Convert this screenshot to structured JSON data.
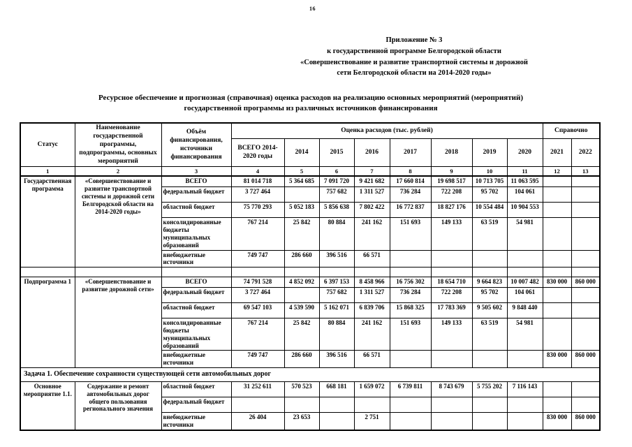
{
  "page": {
    "number": "16"
  },
  "appendix": {
    "lines": [
      "Приложение № 3",
      "к государственной программе Белгородской области",
      "«Совершенствование и развитие транспортной системы и дорожной",
      "сети  Белгородской области на  2014-2020 годы»"
    ]
  },
  "title": {
    "line1": "Ресурсное обеспечение и прогнозная (справочная) оценка расходов на реализацию основных мероприятий (мероприятий)",
    "line2": "государственной программы из различных источников финансирования"
  },
  "table": {
    "headers": {
      "status": "Статус",
      "name": "Наименование государственной программы, подпрограммы, основных мероприятий",
      "volume": "Объём финансирования, источники финансирования",
      "expenses_group": "Оценка расходов (тыс. рублей)",
      "reference_group": "Справочно",
      "year_columns": [
        "ВСЕГО 2014-2020 годы",
        "2014",
        "2015",
        "2016",
        "2017",
        "2018",
        "2019",
        "2020",
        "2021",
        "2022"
      ],
      "column_numbers": [
        "1",
        "2",
        "3",
        "4",
        "5",
        "6",
        "7",
        "8",
        "9",
        "10",
        "11",
        "12",
        "13"
      ]
    },
    "blocks": [
      {
        "status": "Государственная программа",
        "name": "«Совершенствование и развитие транспортной системы и дорожной сети Белгородской области на 2014-2020 годы»",
        "rows": [
          {
            "source": "ВСЕГО",
            "total": true,
            "values": [
              "81 014 718",
              "5 364 685",
              "7 091 720",
              "9 421 682",
              "17 660 814",
              "19 698 517",
              "10 713 705",
              "11 063 595",
              "",
              ""
            ]
          },
          {
            "source": "федеральный бюджет",
            "values": [
              "3 727 464",
              "",
              "757 682",
              "1 311 527",
              "736 284",
              "722 208",
              "95 702",
              "104 061",
              "",
              ""
            ]
          },
          {
            "source": "областной бюджет",
            "values": [
              "75 770 293",
              "5 052 183",
              "5 856 638",
              "7 802 422",
              "16 772 837",
              "18 827 176",
              "10 554 484",
              "10 904 553",
              "",
              ""
            ]
          },
          {
            "source": "консолидированные бюджеты муниципальных образований",
            "values": [
              "767 214",
              "25 842",
              "80 884",
              "241 162",
              "151 693",
              "149 133",
              "63 519",
              "54 981",
              "",
              ""
            ]
          },
          {
            "source": "внебюджетные источники",
            "values": [
              "749 747",
              "286 660",
              "396 516",
              "66 571",
              "",
              "",
              "",
              "",
              "",
              ""
            ]
          }
        ]
      },
      {
        "spacer": true
      },
      {
        "status": "Подпрограмма 1",
        "name": "«Совершенствование и развитие дорожной сети»",
        "rows": [
          {
            "source": "ВСЕГО",
            "total": true,
            "values": [
              "74 791 528",
              "4 852 092",
              "6 397 153",
              "8 458 966",
              "16 756 302",
              "18 654 710",
              "9 664 823",
              "10 007 482",
              "830 000",
              "860 000"
            ]
          },
          {
            "source": "федеральный бюджет",
            "values": [
              "3 727 464",
              "",
              "757 682",
              "1 311 527",
              "736 284",
              "722 208",
              "95 702",
              "104 061",
              "",
              ""
            ]
          },
          {
            "source": "областной бюджет",
            "values": [
              "69 547 103",
              "4 539 590",
              "5 162 071",
              "6 839 706",
              "15 868 325",
              "17 783 369",
              "9 505 602",
              "9 848 440",
              "",
              ""
            ]
          },
          {
            "source": "консолидированные бюджеты муниципальных образований",
            "values": [
              "767 214",
              "25 842",
              "80 884",
              "241 162",
              "151 693",
              "149 133",
              "63 519",
              "54 981",
              "",
              ""
            ]
          },
          {
            "source": "внебюджетные источники",
            "values": [
              "749 747",
              "286 660",
              "396 516",
              "66 571",
              "",
              "",
              "",
              "",
              "830 000",
              "860 000"
            ]
          }
        ]
      },
      {
        "task": "Задача 1. Обеспечение сохранности существующей сети автомобильных дорог"
      },
      {
        "status": "Основное мероприятие 1.1.",
        "name": "Содержание и ремонт автомобильных дорог общего пользования регионального значения",
        "rows": [
          {
            "source": "областной бюджет",
            "values": [
              "31 252 611",
              "570 523",
              "668 181",
              "1 659 072",
              "6 739 811",
              "8 743 679",
              "5 755 202",
              "7 116 143",
              "",
              ""
            ]
          },
          {
            "source": "федеральный бюджет",
            "values": [
              "",
              "",
              "",
              "",
              "",
              "",
              "",
              "",
              "",
              ""
            ]
          },
          {
            "source": "внебюджетные источники",
            "values": [
              "26 404",
              "23 653",
              "",
              "2 751",
              "",
              "",
              "",
              "",
              "830 000",
              "860 000"
            ]
          }
        ]
      }
    ]
  }
}
